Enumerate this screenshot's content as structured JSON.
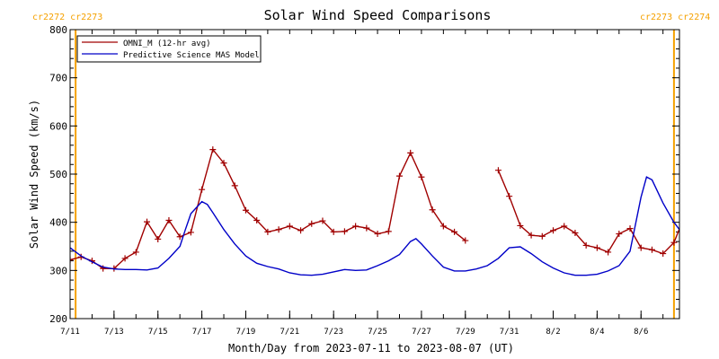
{
  "chart_data": {
    "type": "line",
    "title": "Solar Wind Speed Comparisons",
    "xlabel": "Month/Day from 2023-07-11 to 2023-08-07 (UT)",
    "ylabel": "Solar Wind Speed (km/s)",
    "xlim": [
      "2023-07-11",
      "2023-08-07T18:00"
    ],
    "ylim": [
      200,
      800
    ],
    "yticks": [
      200,
      300,
      400,
      500,
      600,
      700,
      800
    ],
    "xticks": [
      {
        "label": "7/11",
        "date": "2023-07-11"
      },
      {
        "label": "7/13",
        "date": "2023-07-13"
      },
      {
        "label": "7/15",
        "date": "2023-07-15"
      },
      {
        "label": "7/17",
        "date": "2023-07-17"
      },
      {
        "label": "7/19",
        "date": "2023-07-19"
      },
      {
        "label": "7/21",
        "date": "2023-07-21"
      },
      {
        "label": "7/23",
        "date": "2023-07-23"
      },
      {
        "label": "7/25",
        "date": "2023-07-25"
      },
      {
        "label": "7/27",
        "date": "2023-07-27"
      },
      {
        "label": "7/29",
        "date": "2023-07-29"
      },
      {
        "label": "7/31",
        "date": "2023-07-31"
      },
      {
        "label": "8/2",
        "date": "2023-08-02"
      },
      {
        "label": "8/4",
        "date": "2023-08-04"
      },
      {
        "label": "8/6",
        "date": "2023-08-06"
      }
    ],
    "carrington_markers": [
      {
        "date": "2023-07-11T06:00",
        "label": "cr2272 cr2273"
      },
      {
        "date": "2023-08-07T12:00",
        "label": "cr2273 cr2274"
      }
    ],
    "legend": {
      "position": "top-left"
    },
    "series": [
      {
        "name": "OMNI_M (12-hr avg)",
        "color": "#a00000",
        "marker": "plus",
        "points": [
          [
            "2023-07-11T00:00",
            322
          ],
          [
            "2023-07-11T12:00",
            328
          ],
          [
            "2023-07-12T00:00",
            320
          ],
          [
            "2023-07-12T12:00",
            304
          ],
          [
            "2023-07-13T00:00",
            304
          ],
          [
            "2023-07-13T12:00",
            325
          ],
          [
            "2023-07-14T00:00",
            338
          ],
          [
            "2023-07-14T12:00",
            401
          ],
          [
            "2023-07-15T00:00",
            365
          ],
          [
            "2023-07-15T12:00",
            404
          ],
          [
            "2023-07-16T00:00",
            370
          ],
          [
            "2023-07-16T12:00",
            379
          ],
          [
            "2023-07-17T00:00",
            468
          ],
          [
            "2023-07-17T12:00",
            551
          ],
          [
            "2023-07-18T00:00",
            523
          ],
          [
            "2023-07-18T12:00",
            476
          ],
          [
            "2023-07-19T00:00",
            425
          ],
          [
            "2023-07-19T12:00",
            404
          ],
          [
            "2023-07-20T00:00",
            380
          ],
          [
            "2023-07-20T12:00",
            385
          ],
          [
            "2023-07-21T00:00",
            392
          ],
          [
            "2023-07-21T12:00",
            383
          ],
          [
            "2023-07-22T00:00",
            397
          ],
          [
            "2023-07-22T12:00",
            403
          ],
          [
            "2023-07-23T00:00",
            380
          ],
          [
            "2023-07-23T12:00",
            381
          ],
          [
            "2023-07-24T00:00",
            392
          ],
          [
            "2023-07-24T12:00",
            388
          ],
          [
            "2023-07-25T00:00",
            376
          ],
          [
            "2023-07-25T12:00",
            381
          ],
          [
            "2023-07-26T00:00",
            496
          ],
          [
            "2023-07-26T12:00",
            544
          ],
          [
            "2023-07-27T00:00",
            494
          ],
          [
            "2023-07-27T12:00",
            426
          ],
          [
            "2023-07-28T00:00",
            392
          ],
          [
            "2023-07-28T12:00",
            380
          ],
          [
            "2023-07-29T00:00",
            362
          ],
          null,
          [
            "2023-07-30T12:00",
            508
          ],
          [
            "2023-07-31T00:00",
            454
          ],
          [
            "2023-07-31T12:00",
            393
          ],
          [
            "2023-08-01T00:00",
            373
          ],
          [
            "2023-08-01T12:00",
            371
          ],
          [
            "2023-08-02T00:00",
            383
          ],
          [
            "2023-08-02T12:00",
            392
          ],
          [
            "2023-08-03T00:00",
            378
          ],
          [
            "2023-08-03T12:00",
            352
          ],
          [
            "2023-08-04T00:00",
            347
          ],
          [
            "2023-08-04T12:00",
            338
          ],
          [
            "2023-08-05T00:00",
            376
          ],
          [
            "2023-08-05T12:00",
            387
          ],
          [
            "2023-08-06T00:00",
            347
          ],
          [
            "2023-08-06T12:00",
            343
          ],
          [
            "2023-08-07T00:00",
            335
          ],
          [
            "2023-08-07T12:00",
            358
          ],
          [
            "2023-08-08T00:00",
            415
          ]
        ]
      },
      {
        "name": "Predictive Science MAS Model",
        "color": "#0000c8",
        "marker": "none",
        "points": [
          [
            "2023-07-11T00:00",
            347
          ],
          [
            "2023-07-11T12:00",
            330
          ],
          [
            "2023-07-12T00:00",
            318
          ],
          [
            "2023-07-12T12:00",
            307
          ],
          [
            "2023-07-13T00:00",
            303
          ],
          [
            "2023-07-13T12:00",
            302
          ],
          [
            "2023-07-14T00:00",
            302
          ],
          [
            "2023-07-14T12:00",
            301
          ],
          [
            "2023-07-15T00:00",
            305
          ],
          [
            "2023-07-15T12:00",
            325
          ],
          [
            "2023-07-16T00:00",
            350
          ],
          [
            "2023-07-16T06:00",
            385
          ],
          [
            "2023-07-16T12:00",
            418
          ],
          [
            "2023-07-17T00:00",
            443
          ],
          [
            "2023-07-17T06:00",
            437
          ],
          [
            "2023-07-17T12:00",
            420
          ],
          [
            "2023-07-18T00:00",
            385
          ],
          [
            "2023-07-18T12:00",
            355
          ],
          [
            "2023-07-19T00:00",
            330
          ],
          [
            "2023-07-19T12:00",
            315
          ],
          [
            "2023-07-20T00:00",
            308
          ],
          [
            "2023-07-20T12:00",
            303
          ],
          [
            "2023-07-21T00:00",
            295
          ],
          [
            "2023-07-21T12:00",
            291
          ],
          [
            "2023-07-22T00:00",
            290
          ],
          [
            "2023-07-22T12:00",
            292
          ],
          [
            "2023-07-23T00:00",
            297
          ],
          [
            "2023-07-23T12:00",
            302
          ],
          [
            "2023-07-24T00:00",
            300
          ],
          [
            "2023-07-24T12:00",
            301
          ],
          [
            "2023-07-25T00:00",
            310
          ],
          [
            "2023-07-25T12:00",
            320
          ],
          [
            "2023-07-26T00:00",
            333
          ],
          [
            "2023-07-26T12:00",
            360
          ],
          [
            "2023-07-26T18:00",
            366
          ],
          [
            "2023-07-27T00:00",
            355
          ],
          [
            "2023-07-27T12:00",
            330
          ],
          [
            "2023-07-28T00:00",
            307
          ],
          [
            "2023-07-28T12:00",
            299
          ],
          [
            "2023-07-29T00:00",
            299
          ],
          [
            "2023-07-29T12:00",
            303
          ],
          [
            "2023-07-30T00:00",
            310
          ],
          [
            "2023-07-30T12:00",
            325
          ],
          [
            "2023-07-31T00:00",
            347
          ],
          [
            "2023-07-31T12:00",
            349
          ],
          [
            "2023-08-01T00:00",
            335
          ],
          [
            "2023-08-01T12:00",
            318
          ],
          [
            "2023-08-02T00:00",
            305
          ],
          [
            "2023-08-02T12:00",
            295
          ],
          [
            "2023-08-03T00:00",
            290
          ],
          [
            "2023-08-03T12:00",
            290
          ],
          [
            "2023-08-04T00:00",
            292
          ],
          [
            "2023-08-04T12:00",
            299
          ],
          [
            "2023-08-05T00:00",
            310
          ],
          [
            "2023-08-05T12:00",
            340
          ],
          [
            "2023-08-06T00:00",
            452
          ],
          [
            "2023-08-06T06:00",
            494
          ],
          [
            "2023-08-06T12:00",
            488
          ],
          [
            "2023-08-07T00:00",
            440
          ],
          [
            "2023-08-07T12:00",
            400
          ],
          [
            "2023-08-08T00:00",
            370
          ],
          [
            "2023-08-08T12:00",
            358
          ]
        ]
      }
    ]
  }
}
